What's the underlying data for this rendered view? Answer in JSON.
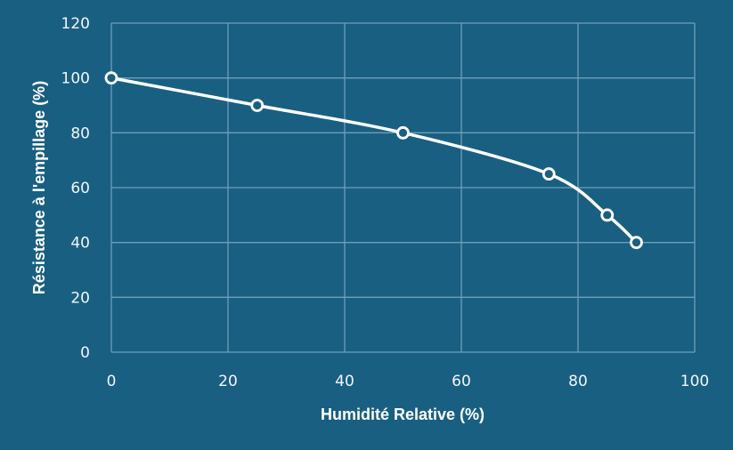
{
  "chart_data": {
    "type": "line",
    "title": "",
    "xlabel": "Humidité Relative (%)",
    "ylabel": "Résistance à l'empillage (%)",
    "xlim": [
      0,
      100
    ],
    "ylim": [
      0,
      120
    ],
    "xticks": [
      0,
      20,
      40,
      60,
      80,
      100
    ],
    "yticks": [
      0,
      20,
      40,
      60,
      80,
      100,
      120
    ],
    "grid": true,
    "legend": null,
    "smooth": true,
    "series": [
      {
        "name": "Résistance à l'empillage",
        "color": "#ffffff",
        "marker": "open-circle",
        "x": [
          0,
          25,
          50,
          75,
          85,
          90
        ],
        "y": [
          100,
          90,
          80,
          65,
          50,
          40
        ]
      }
    ]
  },
  "colors": {
    "background": "#195f82",
    "grid": "#6e9fba",
    "text": "#ffffff"
  }
}
